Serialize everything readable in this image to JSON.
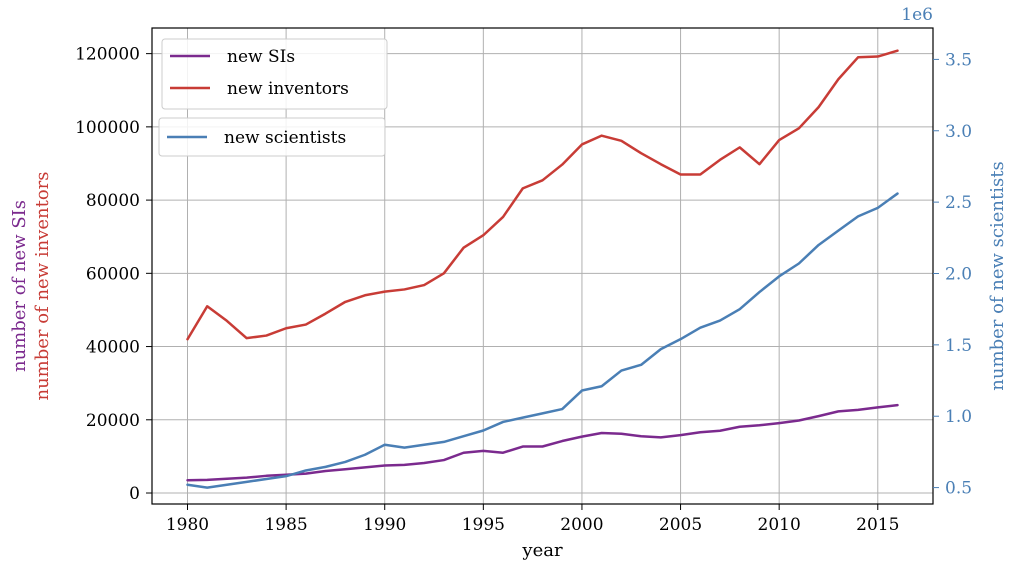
{
  "chart_data": {
    "type": "line",
    "xlabel": "year",
    "ylabel_left": [
      "number of new SIs",
      "number of new inventors"
    ],
    "ylabel_right": "number of new scientists",
    "right_axis_multiplier": "1e6",
    "xlim": [
      1978.2,
      2017.8
    ],
    "ylim_left": [
      -3000,
      127000
    ],
    "ylim_right": [
      0.385,
      3.72
    ],
    "x_ticks": [
      1980,
      1985,
      1990,
      1995,
      2000,
      2005,
      2010,
      2015
    ],
    "y_left_ticks": [
      0,
      20000,
      40000,
      60000,
      80000,
      100000,
      120000
    ],
    "y_right_ticks": [
      "0.5",
      "1.0",
      "1.5",
      "2.0",
      "2.5",
      "3.0",
      "3.5"
    ],
    "grid": true,
    "legend_left": {
      "placement": "upper-left",
      "entries": [
        "new SIs",
        "new inventors"
      ]
    },
    "legend_right": {
      "placement": "upper-left",
      "entries": [
        "new scientists"
      ]
    },
    "colors": {
      "sis": "#7b2a8e",
      "inventors": "#c83c36",
      "scientists": "#4a7fb5"
    },
    "x": [
      1980,
      1981,
      1982,
      1983,
      1984,
      1985,
      1986,
      1987,
      1988,
      1989,
      1990,
      1991,
      1992,
      1993,
      1994,
      1995,
      1996,
      1997,
      1998,
      1999,
      2000,
      2001,
      2002,
      2003,
      2004,
      2005,
      2006,
      2007,
      2008,
      2009,
      2010,
      2011,
      2012,
      2013,
      2014,
      2015,
      2016
    ],
    "series": [
      {
        "name": "new SIs",
        "axis": "left",
        "color": "#7b2a8e",
        "values": [
          3500,
          3600,
          3900,
          4200,
          4700,
          5000,
          5300,
          6000,
          6500,
          7000,
          7500,
          7700,
          8200,
          9000,
          11000,
          11500,
          11000,
          12700,
          12700,
          14200,
          15400,
          16400,
          16200,
          15500,
          15200,
          15800,
          16600,
          17000,
          18100,
          18500,
          19100,
          19800,
          21000,
          22300,
          22700,
          23400,
          24000
        ]
      },
      {
        "name": "new inventors",
        "axis": "left",
        "color": "#c83c36",
        "values": [
          42000,
          51000,
          47000,
          42300,
          43000,
          45000,
          46000,
          49000,
          52200,
          54000,
          55000,
          55600,
          56800,
          60000,
          67000,
          70400,
          75400,
          83200,
          85400,
          89700,
          95200,
          97600,
          96200,
          92800,
          89800,
          87000,
          87000,
          91000,
          94400,
          89800,
          96400,
          99600,
          105400,
          113000,
          119000,
          119200,
          120800
        ]
      },
      {
        "name": "new scientists",
        "axis": "right",
        "color": "#4a7fb5",
        "values": [
          0.52,
          0.5,
          0.52,
          0.54,
          0.56,
          0.58,
          0.62,
          0.645,
          0.68,
          0.73,
          0.8,
          0.78,
          0.8,
          0.82,
          0.86,
          0.9,
          0.96,
          0.99,
          1.02,
          1.05,
          1.18,
          1.21,
          1.32,
          1.36,
          1.47,
          1.54,
          1.62,
          1.67,
          1.75,
          1.87,
          1.98,
          2.07,
          2.2,
          2.3,
          2.4,
          2.46,
          2.56
        ]
      }
    ]
  }
}
